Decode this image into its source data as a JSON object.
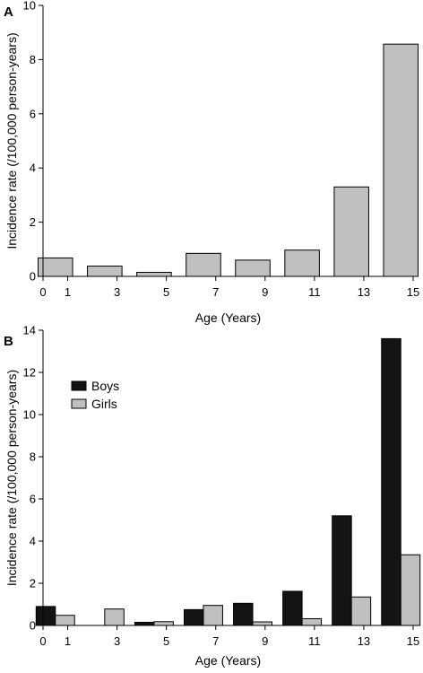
{
  "chart_data": [
    {
      "panel_label": "A",
      "type": "bar",
      "categories": [
        "0-1",
        "2-3",
        "4-5",
        "6-7",
        "8-9",
        "10-11",
        "12-13",
        "14-15"
      ],
      "x_ticks": [
        "0",
        "1",
        "3",
        "5",
        "7",
        "9",
        "11",
        "13",
        "15"
      ],
      "x_range": [
        0,
        15
      ],
      "bar_centers": [
        0.5,
        2.5,
        4.5,
        6.5,
        8.5,
        10.5,
        12.5,
        14.5
      ],
      "bar_width": 1.4,
      "values": [
        0.68,
        0.38,
        0.15,
        0.85,
        0.6,
        0.97,
        3.3,
        8.57
      ],
      "colors": [
        "#c0c0c0"
      ],
      "xlabel": "Age (Years)",
      "ylabel": "Incidence rate (/100,000 person-years)",
      "ylim": [
        0,
        10
      ],
      "y_ticks": [
        "0",
        "2",
        "4",
        "6",
        "8",
        "10"
      ],
      "grid": false
    },
    {
      "panel_label": "B",
      "type": "bar",
      "categories": [
        "0-1",
        "2-3",
        "4-5",
        "6-7",
        "8-9",
        "10-11",
        "12-13",
        "14-15"
      ],
      "x_ticks": [
        "0",
        "1",
        "3",
        "5",
        "7",
        "9",
        "11",
        "13",
        "15"
      ],
      "x_range": [
        0,
        15
      ],
      "bar_centers": [
        0.5,
        2.5,
        4.5,
        6.5,
        8.5,
        10.5,
        12.5,
        14.5
      ],
      "bar_width": 0.78,
      "series": [
        {
          "name": "Boys",
          "color": "#141414",
          "values": [
            0.9,
            0.0,
            0.15,
            0.75,
            1.05,
            1.62,
            5.2,
            13.6
          ]
        },
        {
          "name": "Girls",
          "color": "#c0c0c0",
          "values": [
            0.48,
            0.78,
            0.18,
            0.95,
            0.17,
            0.32,
            1.35,
            3.35
          ]
        }
      ],
      "legend_position": "top-left",
      "xlabel": "Age (Years)",
      "ylabel": "Incidence rate (/100,000 person-years)",
      "ylim": [
        0,
        14
      ],
      "y_ticks": [
        "0",
        "2",
        "4",
        "6",
        "8",
        "10",
        "12",
        "14"
      ],
      "grid": false
    }
  ]
}
